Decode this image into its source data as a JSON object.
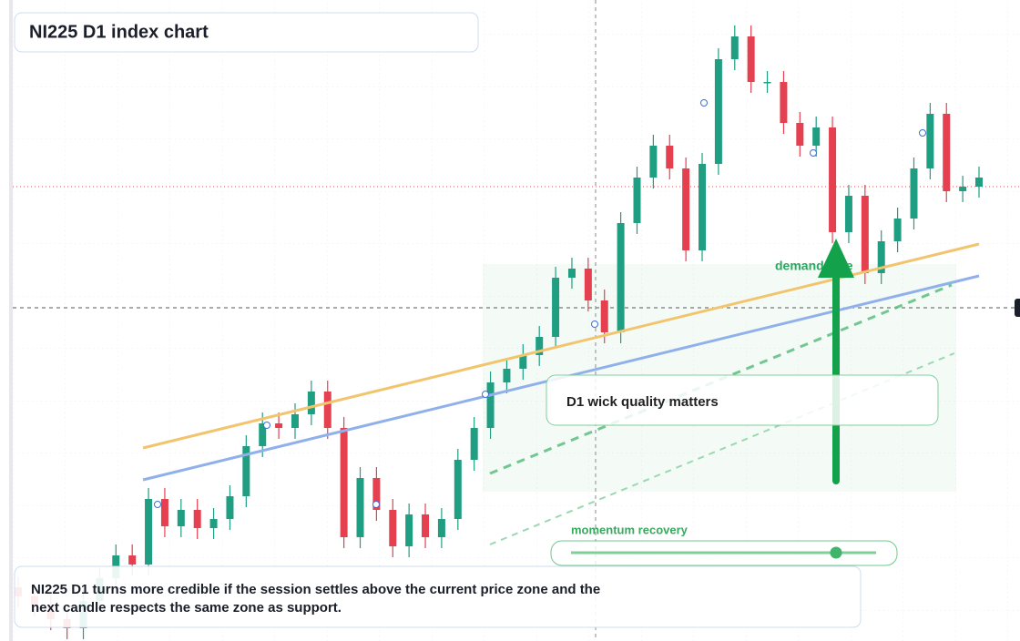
{
  "chart_data": {
    "type": "candlestick",
    "title": "NI225 D1 index chart",
    "note": "D1 wick quality matters",
    "zone_label": "demand side",
    "slider_label": "momentum recovery",
    "caption": [
      "NI225 D1 turns more credible if the session settles above the current price zone and the",
      "next candle respects the same zone as support."
    ],
    "up_color": "#1f9e82",
    "down_color": "#e5404f",
    "ylim": [
      0,
      704
    ],
    "open": [
      59,
      49,
      39,
      24,
      14,
      44,
      69,
      94,
      84,
      156,
      126,
      144,
      124,
      134,
      159,
      214,
      239,
      234,
      249,
      274,
      234,
      114,
      179,
      144,
      104,
      139,
      114,
      134,
      199,
      234,
      284,
      299,
      314,
      334,
      399,
      409,
      374,
      339,
      459,
      509,
      544,
      519,
      429,
      524,
      639,
      664,
      614,
      614,
      569,
      544,
      564,
      449,
      489,
      404,
      439,
      464,
      519,
      579,
      494,
      499
    ],
    "high": [
      71,
      61,
      51,
      36,
      56,
      81,
      106,
      106,
      168,
      168,
      156,
      156,
      146,
      171,
      226,
      251,
      251,
      261,
      286,
      286,
      246,
      191,
      191,
      156,
      151,
      151,
      146,
      211,
      246,
      296,
      311,
      326,
      346,
      411,
      421,
      421,
      386,
      471,
      521,
      556,
      556,
      531,
      536,
      651,
      676,
      676,
      626,
      626,
      581,
      576,
      576,
      501,
      501,
      451,
      476,
      531,
      591,
      591,
      511,
      521
    ],
    "low": [
      37,
      27,
      12,
      2,
      2,
      32,
      57,
      72,
      72,
      114,
      114,
      112,
      112,
      122,
      147,
      202,
      222,
      222,
      237,
      222,
      102,
      102,
      132,
      92,
      92,
      102,
      102,
      122,
      187,
      222,
      272,
      287,
      302,
      322,
      387,
      362,
      327,
      327,
      447,
      497,
      507,
      417,
      417,
      512,
      627,
      602,
      602,
      557,
      532,
      532,
      437,
      437,
      392,
      392,
      427,
      452,
      507,
      482,
      482,
      487
    ],
    "close": [
      49,
      39,
      24,
      14,
      44,
      69,
      94,
      84,
      156,
      126,
      144,
      124,
      134,
      159,
      214,
      239,
      234,
      249,
      274,
      234,
      114,
      179,
      144,
      104,
      139,
      114,
      134,
      199,
      234,
      284,
      299,
      314,
      334,
      399,
      409,
      374,
      339,
      459,
      509,
      544,
      519,
      429,
      524,
      639,
      664,
      614,
      614,
      569,
      544,
      564,
      449,
      489,
      404,
      439,
      464,
      519,
      579,
      494,
      499,
      509
    ]
  }
}
